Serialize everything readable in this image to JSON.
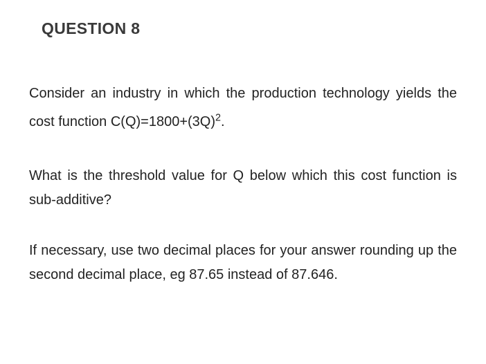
{
  "heading": "QUESTION 8",
  "p1_a": "Consider an industry in which the production technology yields the cost function C(Q)=1800+(3Q)",
  "p1_exp": "2",
  "p1_b": ".",
  "p2": "What is the threshold value for Q below which this cost function is sub-additive?",
  "p3": "If necessary, use two decimal places for your answer rounding up the second decimal place, eg 87.65 instead of 87.646."
}
